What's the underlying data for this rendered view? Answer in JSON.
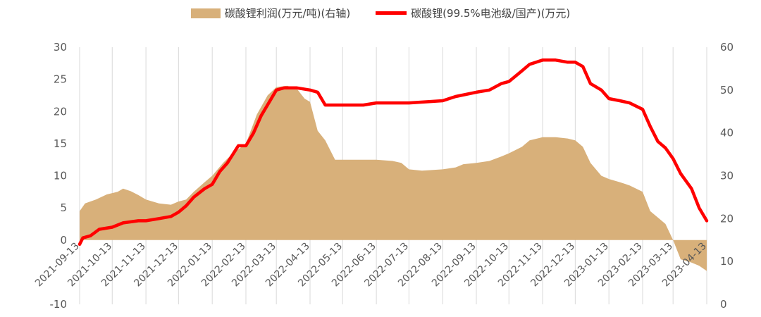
{
  "chart_data": {
    "type": "area",
    "title": "",
    "legend": {
      "placement": "top",
      "items": [
        {
          "label": "碳酸锂利润(万元/吨)(右轴)",
          "kind": "area",
          "color": "#d8b07a"
        },
        {
          "label": "碳酸锂(99.5%电池级/国产)(万元)",
          "kind": "line",
          "color": "#ff0000"
        }
      ]
    },
    "x_categories": [
      "2021-09-13",
      "2021-10-13",
      "2021-11-13",
      "2021-12-13",
      "2022-01-13",
      "2022-02-13",
      "2022-03-13",
      "2022-04-13",
      "2022-05-13",
      "2022-06-13",
      "2022-07-13",
      "2022-08-13",
      "2022-09-13",
      "2022-10-13",
      "2022-11-13",
      "2022-12-13",
      "2023-01-13",
      "2023-02-13",
      "2023-03-13",
      "2023-04-13"
    ],
    "y_left": {
      "ticks": [
        "-10",
        "0",
        "5",
        "10",
        "15",
        "20",
        "25",
        "30"
      ],
      "min": -10,
      "max": 30
    },
    "y_right": {
      "ticks": [
        "0",
        "10",
        "20",
        "30",
        "40",
        "50",
        "60"
      ],
      "min": 0,
      "max": 60
    },
    "grid": {
      "vertical": true,
      "horizontal": false
    },
    "series": [
      {
        "name": "碳酸锂利润(万元/吨)(右轴)",
        "type": "area",
        "color": "#d8b07a",
        "points": [
          [
            "2021-09-13",
            4.5
          ],
          [
            "2021-09-18",
            5.7
          ],
          [
            "2021-09-28",
            6.3
          ],
          [
            "2021-10-08",
            7.1
          ],
          [
            "2021-10-18",
            7.5
          ],
          [
            "2021-10-23",
            8.0
          ],
          [
            "2021-10-30",
            7.6
          ],
          [
            "2021-11-06",
            7.0
          ],
          [
            "2021-11-13",
            6.3
          ],
          [
            "2021-11-25",
            5.7
          ],
          [
            "2021-12-06",
            5.5
          ],
          [
            "2021-12-13",
            6.0
          ],
          [
            "2021-12-20",
            6.3
          ],
          [
            "2021-12-27",
            7.5
          ],
          [
            "2022-01-06",
            9.0
          ],
          [
            "2022-01-13",
            10.0
          ],
          [
            "2022-01-23",
            12.0
          ],
          [
            "2022-02-01",
            13.5
          ],
          [
            "2022-02-13",
            15.0
          ],
          [
            "2022-02-23",
            19.5
          ],
          [
            "2022-03-05",
            22.5
          ],
          [
            "2022-03-13",
            23.8
          ],
          [
            "2022-03-23",
            24.0
          ],
          [
            "2022-04-01",
            23.5
          ],
          [
            "2022-04-08",
            22.0
          ],
          [
            "2022-04-13",
            21.5
          ],
          [
            "2022-04-20",
            17.0
          ],
          [
            "2022-04-27",
            15.5
          ],
          [
            "2022-05-06",
            12.5
          ],
          [
            "2022-05-13",
            12.5
          ],
          [
            "2022-06-01",
            12.5
          ],
          [
            "2022-06-13",
            12.5
          ],
          [
            "2022-06-28",
            12.3
          ],
          [
            "2022-07-06",
            12.0
          ],
          [
            "2022-07-13",
            11.0
          ],
          [
            "2022-07-25",
            10.8
          ],
          [
            "2022-08-13",
            11.0
          ],
          [
            "2022-08-25",
            11.3
          ],
          [
            "2022-09-01",
            11.8
          ],
          [
            "2022-09-13",
            12.0
          ],
          [
            "2022-09-25",
            12.3
          ],
          [
            "2022-10-06",
            13.0
          ],
          [
            "2022-10-13",
            13.5
          ],
          [
            "2022-10-25",
            14.5
          ],
          [
            "2022-11-01",
            15.5
          ],
          [
            "2022-11-13",
            16.0
          ],
          [
            "2022-11-25",
            16.0
          ],
          [
            "2022-12-06",
            15.8
          ],
          [
            "2022-12-13",
            15.5
          ],
          [
            "2022-12-20",
            14.5
          ],
          [
            "2022-12-27",
            12.0
          ],
          [
            "2023-01-06",
            10.0
          ],
          [
            "2023-01-13",
            9.5
          ],
          [
            "2023-01-23",
            9.0
          ],
          [
            "2023-02-01",
            8.5
          ],
          [
            "2023-02-13",
            7.5
          ],
          [
            "2023-02-20",
            4.5
          ],
          [
            "2023-02-27",
            3.5
          ],
          [
            "2023-03-06",
            2.5
          ],
          [
            "2023-03-13",
            0.0
          ],
          [
            "2023-03-20",
            -3.0
          ],
          [
            "2023-03-30",
            -3.5
          ],
          [
            "2023-04-06",
            -4.0
          ],
          [
            "2023-04-13",
            -4.8
          ]
        ]
      },
      {
        "name": "碳酸锂(99.5%电池级/国产)(万元)",
        "type": "line",
        "color": "#ff0000",
        "points": [
          [
            "2021-09-13",
            14.0
          ],
          [
            "2021-09-16",
            15.5
          ],
          [
            "2021-09-23",
            16.0
          ],
          [
            "2021-10-01",
            17.5
          ],
          [
            "2021-10-13",
            18.0
          ],
          [
            "2021-10-23",
            19.0
          ],
          [
            "2021-11-06",
            19.5
          ],
          [
            "2021-11-13",
            19.5
          ],
          [
            "2021-11-25",
            20.0
          ],
          [
            "2021-12-06",
            20.5
          ],
          [
            "2021-12-13",
            21.5
          ],
          [
            "2021-12-20",
            23.0
          ],
          [
            "2021-12-27",
            25.0
          ],
          [
            "2022-01-06",
            27.0
          ],
          [
            "2022-01-13",
            28.0
          ],
          [
            "2022-01-20",
            31.0
          ],
          [
            "2022-01-27",
            33.0
          ],
          [
            "2022-02-01",
            35.0
          ],
          [
            "2022-02-06",
            37.0
          ],
          [
            "2022-02-13",
            37.0
          ],
          [
            "2022-02-20",
            40.0
          ],
          [
            "2022-02-27",
            44.0
          ],
          [
            "2022-03-06",
            47.0
          ],
          [
            "2022-03-13",
            50.0
          ],
          [
            "2022-03-20",
            50.5
          ],
          [
            "2022-04-01",
            50.5
          ],
          [
            "2022-04-13",
            50.0
          ],
          [
            "2022-04-20",
            49.5
          ],
          [
            "2022-04-27",
            46.5
          ],
          [
            "2022-05-06",
            46.5
          ],
          [
            "2022-05-13",
            46.5
          ],
          [
            "2022-06-01",
            46.5
          ],
          [
            "2022-06-13",
            47.0
          ],
          [
            "2022-07-13",
            47.0
          ],
          [
            "2022-08-13",
            47.5
          ],
          [
            "2022-08-25",
            48.5
          ],
          [
            "2022-09-13",
            49.5
          ],
          [
            "2022-09-25",
            50.0
          ],
          [
            "2022-10-06",
            51.5
          ],
          [
            "2022-10-13",
            52.0
          ],
          [
            "2022-10-25",
            54.5
          ],
          [
            "2022-11-01",
            56.0
          ],
          [
            "2022-11-13",
            57.0
          ],
          [
            "2022-11-25",
            57.0
          ],
          [
            "2022-12-06",
            56.5
          ],
          [
            "2022-12-13",
            56.5
          ],
          [
            "2022-12-20",
            55.5
          ],
          [
            "2022-12-27",
            51.5
          ],
          [
            "2023-01-06",
            50.0
          ],
          [
            "2023-01-13",
            48.0
          ],
          [
            "2023-01-23",
            47.5
          ],
          [
            "2023-02-01",
            47.0
          ],
          [
            "2023-02-13",
            45.5
          ],
          [
            "2023-02-20",
            41.5
          ],
          [
            "2023-02-27",
            38.0
          ],
          [
            "2023-03-06",
            36.5
          ],
          [
            "2023-03-13",
            34.0
          ],
          [
            "2023-03-20",
            30.5
          ],
          [
            "2023-03-30",
            27.0
          ],
          [
            "2023-04-06",
            22.5
          ],
          [
            "2023-04-13",
            19.5
          ]
        ]
      }
    ]
  }
}
